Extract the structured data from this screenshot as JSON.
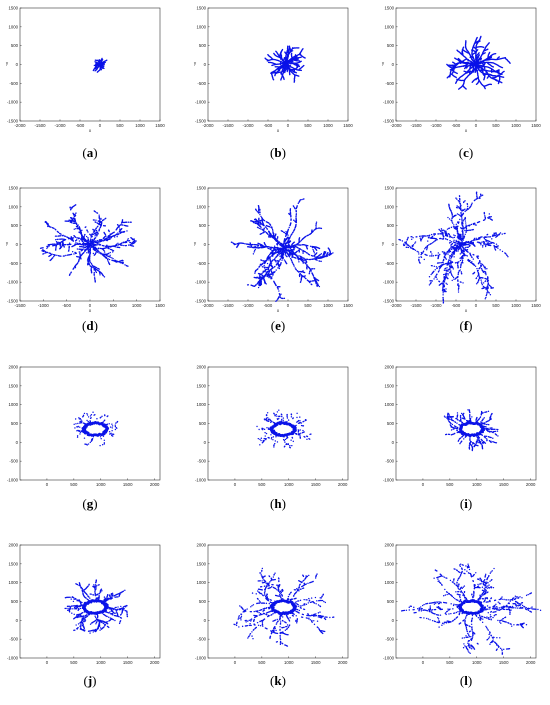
{
  "colors": {
    "points": "#0a12e8",
    "axes": "#333333"
  },
  "chart_data": [
    {
      "id": "a",
      "type": "scatter",
      "label_prefix": "(",
      "label_letter": "a",
      "label_suffix": ")",
      "xlabel": "x",
      "ylabel": "y",
      "xlim": [
        -2000,
        1500
      ],
      "ylim": [
        -1500,
        1500
      ],
      "xticks": [
        -2000,
        -1500,
        -1000,
        -500,
        0,
        500,
        1000,
        1500
      ],
      "yticks": [
        -1500,
        -1000,
        -500,
        0,
        500,
        1000,
        1500
      ],
      "cluster": {
        "center": [
          0,
          0
        ],
        "radius": 140,
        "density": "dense",
        "core": 0
      }
    },
    {
      "id": "b",
      "type": "scatter",
      "label_prefix": "(",
      "label_letter": "b",
      "label_suffix": ")",
      "xlabel": "x",
      "ylabel": "y",
      "xlim": [
        -2000,
        1500
      ],
      "ylim": [
        -1500,
        1500
      ],
      "xticks": [
        -2000,
        -1500,
        -1000,
        -500,
        0,
        500,
        1000,
        1500
      ],
      "yticks": [
        -1500,
        -1000,
        -500,
        0,
        500,
        1000,
        1500
      ],
      "cluster": {
        "center": [
          -50,
          50
        ],
        "radius": 480,
        "density": "dense",
        "core": 0
      }
    },
    {
      "id": "c",
      "type": "scatter",
      "label_prefix": "(",
      "label_letter": "c",
      "label_suffix": ")",
      "xlabel": "x",
      "ylabel": "y",
      "xlim": [
        -2000,
        1500
      ],
      "ylim": [
        -1500,
        1500
      ],
      "xticks": [
        -2000,
        -1500,
        -1000,
        -500,
        0,
        500,
        1000,
        1500
      ],
      "yticks": [
        -1500,
        -1000,
        -500,
        0,
        500,
        1000,
        1500
      ],
      "cluster": {
        "center": [
          0,
          0
        ],
        "radius": 800,
        "density": "dense",
        "core": 0
      }
    },
    {
      "id": "d",
      "type": "scatter",
      "label_prefix": "(",
      "label_letter": "d",
      "label_suffix": ")",
      "xlabel": "x",
      "ylabel": "y",
      "xlim": [
        -1500,
        1500
      ],
      "ylim": [
        -1500,
        1500
      ],
      "xticks": [
        -1500,
        -1000,
        -500,
        0,
        500,
        1000,
        1500
      ],
      "yticks": [
        -1500,
        -1000,
        -500,
        0,
        500,
        1000,
        1500
      ],
      "cluster": {
        "center": [
          0,
          0
        ],
        "radius": 1100,
        "density": "medium",
        "core": 0
      }
    },
    {
      "id": "e",
      "type": "scatter",
      "label_prefix": "(",
      "label_letter": "e",
      "label_suffix": ")",
      "xlabel": "x",
      "ylabel": "y",
      "xlim": [
        -2000,
        1500
      ],
      "ylim": [
        -1500,
        1500
      ],
      "xticks": [
        -2000,
        -1500,
        -1000,
        -500,
        0,
        500,
        1000,
        1500
      ],
      "yticks": [
        -1500,
        -1000,
        -500,
        0,
        500,
        1000,
        1500
      ],
      "cluster": {
        "center": [
          -100,
          -100
        ],
        "radius": 1350,
        "density": "medium",
        "core": 0
      }
    },
    {
      "id": "f",
      "type": "scatter",
      "label_prefix": "(",
      "label_letter": "f",
      "label_suffix": ")",
      "xlabel": "x",
      "ylabel": "y",
      "xlim": [
        -2000,
        1500
      ],
      "ylim": [
        -1500,
        1500
      ],
      "xticks": [
        -2000,
        -1500,
        -1000,
        -500,
        0,
        500,
        1000,
        1500
      ],
      "yticks": [
        -1500,
        -1000,
        -500,
        0,
        500,
        1000,
        1500
      ],
      "cluster": {
        "center": [
          -400,
          0
        ],
        "radius": 1600,
        "density": "light",
        "core": 0
      }
    },
    {
      "id": "g",
      "type": "scatter",
      "label_prefix": "(",
      "label_letter": "g",
      "label_suffix": ")",
      "xlabel": "",
      "ylabel": "",
      "xlim": [
        -500,
        2100
      ],
      "ylim": [
        -1000,
        2000
      ],
      "xticks": [
        0,
        500,
        1000,
        1500,
        2000
      ],
      "yticks": [
        -1000,
        -500,
        0,
        500,
        1000,
        1500,
        2000
      ],
      "cluster": {
        "center": [
          900,
          350
        ],
        "radius": 450,
        "density": "sparse",
        "core": 170
      }
    },
    {
      "id": "h",
      "type": "scatter",
      "label_prefix": "(",
      "label_letter": "h",
      "label_suffix": ")",
      "xlabel": "",
      "ylabel": "",
      "xlim": [
        -500,
        2100
      ],
      "ylim": [
        -1000,
        2000
      ],
      "xticks": [
        0,
        500,
        1000,
        1500,
        2000
      ],
      "yticks": [
        -1000,
        -500,
        0,
        500,
        1000,
        1500,
        2000
      ],
      "cluster": {
        "center": [
          900,
          350
        ],
        "radius": 520,
        "density": "sparse",
        "core": 170
      }
    },
    {
      "id": "i",
      "type": "scatter",
      "label_prefix": "(",
      "label_letter": "i",
      "label_suffix": ")",
      "xlabel": "",
      "ylabel": "",
      "xlim": [
        -500,
        2100
      ],
      "ylim": [
        -1000,
        2000
      ],
      "xticks": [
        0,
        500,
        1000,
        1500,
        2000
      ],
      "yticks": [
        -1000,
        -500,
        0,
        500,
        1000,
        1500,
        2000
      ],
      "cluster": {
        "center": [
          900,
          350
        ],
        "radius": 560,
        "density": "medium",
        "core": 170
      }
    },
    {
      "id": "j",
      "type": "scatter",
      "label_prefix": "(",
      "label_letter": "j",
      "label_suffix": ")",
      "xlabel": "",
      "ylabel": "",
      "xlim": [
        -500,
        2100
      ],
      "ylim": [
        -1000,
        2000
      ],
      "xticks": [
        0,
        500,
        1000,
        1500,
        2000
      ],
      "yticks": [
        -1000,
        -500,
        0,
        500,
        1000,
        1500,
        2000
      ],
      "cluster": {
        "center": [
          900,
          350
        ],
        "radius": 750,
        "density": "medium",
        "core": 170
      }
    },
    {
      "id": "k",
      "type": "scatter",
      "label_prefix": "(",
      "label_letter": "k",
      "label_suffix": ")",
      "xlabel": "",
      "ylabel": "",
      "xlim": [
        -500,
        2100
      ],
      "ylim": [
        -1000,
        2000
      ],
      "xticks": [
        0,
        500,
        1000,
        1500,
        2000
      ],
      "yticks": [
        -1000,
        -500,
        0,
        500,
        1000,
        1500,
        2000
      ],
      "cluster": {
        "center": [
          900,
          350
        ],
        "radius": 1050,
        "density": "light",
        "core": 170
      }
    },
    {
      "id": "l",
      "type": "scatter",
      "label_prefix": "(",
      "label_letter": "l",
      "label_suffix": ")",
      "xlabel": "",
      "ylabel": "",
      "xlim": [
        -500,
        2100
      ],
      "ylim": [
        -1000,
        2000
      ],
      "xticks": [
        0,
        500,
        1000,
        1500,
        2000
      ],
      "yticks": [
        -1000,
        -500,
        0,
        500,
        1000,
        1500,
        2000
      ],
      "cluster": {
        "center": [
          900,
          350
        ],
        "radius": 1300,
        "density": "light",
        "core": 170
      }
    }
  ]
}
